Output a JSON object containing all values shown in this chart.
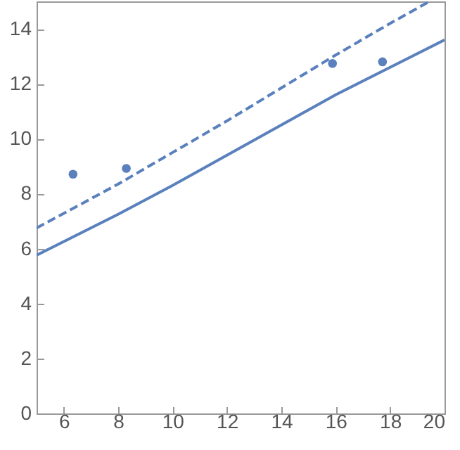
{
  "chart_data": {
    "type": "line",
    "xlim": [
      5,
      20
    ],
    "ylim": [
      0,
      15
    ],
    "xticks": [
      6,
      8,
      10,
      12,
      14,
      16,
      18,
      20
    ],
    "yticks": [
      0,
      2,
      4,
      6,
      8,
      10,
      12,
      14
    ],
    "grid": false,
    "series": [
      {
        "type": "line",
        "color": "#5a80bd",
        "line_style": "solid",
        "marker": "none",
        "x": [
          5,
          8,
          10,
          12,
          14,
          16,
          18,
          20
        ],
        "values": [
          5.76,
          7.25,
          8.3,
          9.4,
          10.5,
          11.6,
          12.6,
          13.6
        ]
      },
      {
        "type": "line",
        "color": "#5a80bd",
        "line_style": "dashed",
        "marker": "none",
        "x": [
          5,
          8,
          10,
          12,
          14,
          16,
          18,
          19.45
        ],
        "values": [
          6.75,
          8.35,
          9.5,
          10.65,
          11.85,
          13.05,
          14.2,
          15
        ]
      },
      {
        "type": "scatter",
        "color": "#5a80bd",
        "marker": "circle",
        "x": [
          6.34,
          8.3,
          15.88,
          17.72
        ],
        "values": [
          8.71,
          8.92,
          12.74,
          12.8
        ]
      }
    ]
  }
}
